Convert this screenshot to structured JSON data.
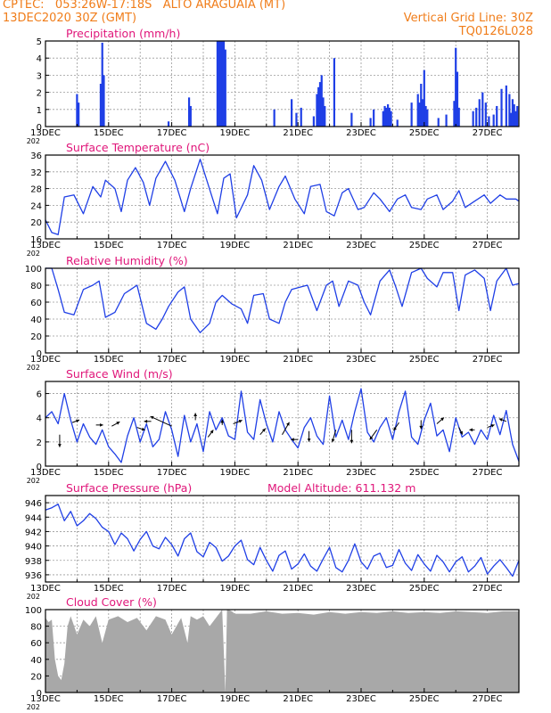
{
  "header": {
    "org_coords": "CPTEC:   053:26W-17:18S   ALTO ARAGUAIA (MT)",
    "run": "13DEC2020 30Z (GMT)",
    "grid_line": "Vertical Grid Line: 30Z",
    "model": "TQ0126L028"
  },
  "x_axis": {
    "labels": [
      "13DEC",
      "15DEC",
      "17DEC",
      "19DEC",
      "21DEC",
      "23DEC",
      "25DEC",
      "27DEC"
    ],
    "year_stub": "202"
  },
  "chart_data": [
    {
      "type": "bar",
      "title": "Precipitation (mm/h)",
      "ylim": [
        0,
        5
      ],
      "yticks": [
        0,
        1,
        2,
        3,
        4,
        5
      ],
      "color": "#1f3fe6",
      "events": [
        {
          "day": 14.0,
          "value": 1.9
        },
        {
          "day": 14.05,
          "value": 1.4
        },
        {
          "day": 14.75,
          "value": 2.5
        },
        {
          "day": 14.8,
          "value": 4.9
        },
        {
          "day": 14.85,
          "value": 3.0
        },
        {
          "day": 16.9,
          "value": 0.3
        },
        {
          "day": 17.55,
          "value": 1.7
        },
        {
          "day": 17.6,
          "value": 1.2
        },
        {
          "day": 18.45,
          "value": 5.0
        },
        {
          "day": 18.5,
          "value": 5.0
        },
        {
          "day": 18.55,
          "value": 5.0
        },
        {
          "day": 18.6,
          "value": 5.0
        },
        {
          "day": 18.65,
          "value": 5.0
        },
        {
          "day": 18.7,
          "value": 4.5
        },
        {
          "day": 20.25,
          "value": 1.0
        },
        {
          "day": 20.8,
          "value": 1.6
        },
        {
          "day": 20.95,
          "value": 0.8
        },
        {
          "day": 21.1,
          "value": 1.1
        },
        {
          "day": 21.5,
          "value": 0.6
        },
        {
          "day": 21.6,
          "value": 1.9
        },
        {
          "day": 21.65,
          "value": 2.3
        },
        {
          "day": 21.7,
          "value": 2.6
        },
        {
          "day": 21.75,
          "value": 3.0
        },
        {
          "day": 21.8,
          "value": 1.7
        },
        {
          "day": 21.85,
          "value": 1.2
        },
        {
          "day": 22.15,
          "value": 4.0
        },
        {
          "day": 22.7,
          "value": 0.8
        },
        {
          "day": 23.3,
          "value": 0.5
        },
        {
          "day": 23.4,
          "value": 1.0
        },
        {
          "day": 23.7,
          "value": 0.9
        },
        {
          "day": 23.75,
          "value": 1.2
        },
        {
          "day": 23.8,
          "value": 1.1
        },
        {
          "day": 23.85,
          "value": 1.3
        },
        {
          "day": 23.9,
          "value": 1.1
        },
        {
          "day": 23.95,
          "value": 0.9
        },
        {
          "day": 24.15,
          "value": 0.4
        },
        {
          "day": 24.6,
          "value": 1.4
        },
        {
          "day": 24.8,
          "value": 1.9
        },
        {
          "day": 24.85,
          "value": 1.4
        },
        {
          "day": 24.9,
          "value": 2.5
        },
        {
          "day": 24.95,
          "value": 1.6
        },
        {
          "day": 25.0,
          "value": 3.3
        },
        {
          "day": 25.05,
          "value": 1.2
        },
        {
          "day": 25.1,
          "value": 1.0
        },
        {
          "day": 25.45,
          "value": 0.5
        },
        {
          "day": 25.7,
          "value": 0.7
        },
        {
          "day": 25.95,
          "value": 1.5
        },
        {
          "day": 26.0,
          "value": 4.6
        },
        {
          "day": 26.05,
          "value": 3.2
        },
        {
          "day": 26.1,
          "value": 1.1
        },
        {
          "day": 26.55,
          "value": 0.9
        },
        {
          "day": 26.65,
          "value": 1.1
        },
        {
          "day": 26.75,
          "value": 1.6
        },
        {
          "day": 26.85,
          "value": 2.0
        },
        {
          "day": 26.95,
          "value": 1.4
        },
        {
          "day": 27.05,
          "value": 0.6
        },
        {
          "day": 27.2,
          "value": 0.7
        },
        {
          "day": 27.3,
          "value": 1.2
        },
        {
          "day": 27.45,
          "value": 2.2
        },
        {
          "day": 27.6,
          "value": 2.4
        },
        {
          "day": 27.7,
          "value": 1.9
        },
        {
          "day": 27.75,
          "value": 0.8
        },
        {
          "day": 27.8,
          "value": 1.6
        },
        {
          "day": 27.85,
          "value": 1.3
        },
        {
          "day": 27.9,
          "value": 0.9
        },
        {
          "day": 27.95,
          "value": 1.2
        }
      ]
    },
    {
      "type": "line",
      "title": "Surface Temperature (nC)",
      "ylim": [
        16,
        36
      ],
      "yticks": [
        16,
        20,
        24,
        28,
        32,
        36
      ],
      "color": "#1f3fe6",
      "x": [
        13.0,
        13.2,
        13.4,
        13.6,
        13.9,
        14.2,
        14.5,
        14.75,
        14.9,
        15.2,
        15.4,
        15.6,
        15.85,
        16.1,
        16.3,
        16.5,
        16.8,
        17.1,
        17.4,
        17.6,
        17.9,
        18.3,
        18.45,
        18.65,
        18.85,
        19.05,
        19.4,
        19.6,
        19.85,
        20.1,
        20.4,
        20.6,
        20.9,
        21.2,
        21.4,
        21.7,
        21.9,
        22.15,
        22.4,
        22.6,
        22.9,
        23.1,
        23.4,
        23.6,
        23.9,
        24.15,
        24.4,
        24.6,
        24.9,
        25.1,
        25.4,
        25.6,
        25.9,
        26.1,
        26.3,
        26.6,
        26.9,
        27.1,
        27.4,
        27.6,
        27.9,
        28.0
      ],
      "y": [
        20.5,
        17.5,
        17.0,
        26.0,
        26.5,
        22.0,
        28.5,
        26.0,
        30.0,
        28.0,
        22.5,
        30.0,
        33.0,
        29.5,
        24.0,
        30.5,
        34.5,
        30.0,
        22.5,
        28.0,
        35.0,
        25.5,
        22.0,
        30.5,
        31.5,
        21.0,
        26.5,
        33.5,
        30.0,
        23.0,
        28.5,
        31.0,
        25.5,
        22.0,
        28.5,
        29.0,
        22.5,
        21.5,
        27.0,
        28.0,
        23.0,
        23.5,
        27.0,
        25.5,
        22.5,
        25.5,
        26.5,
        23.5,
        23.0,
        25.5,
        26.5,
        23.0,
        25.0,
        27.5,
        23.5,
        25.0,
        26.5,
        24.5,
        26.5,
        25.5,
        25.5,
        25.0
      ]
    },
    {
      "type": "line",
      "title": "Relative Humidity (%)",
      "ylim": [
        0,
        100
      ],
      "yticks": [
        0,
        20,
        40,
        60,
        80,
        100
      ],
      "color": "#1f3fe6",
      "x": [
        13.0,
        13.2,
        13.4,
        13.6,
        13.9,
        14.2,
        14.5,
        14.7,
        14.9,
        15.2,
        15.5,
        15.7,
        15.9,
        16.2,
        16.5,
        16.7,
        16.9,
        17.2,
        17.4,
        17.6,
        17.9,
        18.2,
        18.4,
        18.6,
        18.9,
        19.2,
        19.4,
        19.6,
        19.9,
        20.1,
        20.4,
        20.6,
        20.8,
        21.1,
        21.3,
        21.6,
        21.9,
        22.1,
        22.3,
        22.6,
        22.9,
        23.1,
        23.3,
        23.6,
        23.9,
        24.1,
        24.3,
        24.6,
        24.9,
        25.1,
        25.4,
        25.6,
        25.9,
        26.1,
        26.3,
        26.6,
        26.9,
        27.1,
        27.3,
        27.6,
        27.8,
        28.0
      ],
      "y": [
        100,
        100,
        75,
        48,
        45,
        75,
        80,
        85,
        42,
        48,
        70,
        75,
        80,
        35,
        28,
        40,
        55,
        72,
        78,
        40,
        24,
        35,
        60,
        68,
        58,
        52,
        35,
        68,
        70,
        40,
        35,
        60,
        75,
        78,
        80,
        50,
        80,
        85,
        55,
        85,
        80,
        60,
        45,
        85,
        98,
        78,
        55,
        95,
        100,
        88,
        78,
        95,
        95,
        50,
        92,
        98,
        88,
        50,
        85,
        100,
        80,
        82
      ]
    },
    {
      "type": "line",
      "title": "Surface Wind (m/s)",
      "ylim": [
        0,
        7
      ],
      "yticks": [
        0,
        2,
        4,
        6
      ],
      "color": "#1f3fe6",
      "x": [
        13.0,
        13.2,
        13.4,
        13.6,
        13.8,
        14.0,
        14.2,
        14.4,
        14.6,
        14.8,
        15.0,
        15.2,
        15.4,
        15.6,
        15.8,
        16.0,
        16.2,
        16.4,
        16.6,
        16.8,
        17.0,
        17.2,
        17.4,
        17.6,
        17.8,
        18.0,
        18.2,
        18.4,
        18.6,
        18.8,
        19.0,
        19.2,
        19.4,
        19.6,
        19.8,
        20.0,
        20.2,
        20.4,
        20.6,
        20.8,
        21.0,
        21.2,
        21.4,
        21.6,
        21.8,
        22.0,
        22.2,
        22.4,
        22.6,
        22.8,
        23.0,
        23.2,
        23.4,
        23.6,
        23.8,
        24.0,
        24.2,
        24.4,
        24.6,
        24.8,
        25.0,
        25.2,
        25.4,
        25.6,
        25.8,
        26.0,
        26.2,
        26.4,
        26.6,
        26.8,
        27.0,
        27.2,
        27.4,
        27.6,
        27.8,
        28.0
      ],
      "y": [
        4.0,
        4.5,
        3.5,
        6.0,
        3.8,
        2.0,
        3.5,
        2.4,
        1.8,
        3.0,
        1.6,
        1.0,
        0.3,
        2.5,
        4.0,
        2.0,
        3.5,
        1.6,
        2.2,
        4.5,
        3.0,
        0.8,
        4.2,
        2.0,
        3.5,
        1.2,
        4.5,
        3.0,
        4.0,
        2.5,
        2.2,
        6.2,
        2.8,
        2.2,
        5.5,
        3.5,
        2.0,
        4.5,
        3.0,
        2.2,
        1.5,
        3.2,
        4.0,
        2.5,
        1.8,
        5.8,
        2.4,
        3.8,
        2.2,
        4.5,
        6.4,
        2.8,
        2.0,
        3.2,
        4.0,
        2.2,
        4.5,
        6.2,
        2.4,
        1.8,
        3.8,
        5.2,
        2.5,
        3.0,
        1.2,
        4.0,
        2.4,
        2.8,
        1.8,
        3.0,
        2.2,
        4.2,
        2.6,
        4.6,
        1.8,
        0.4
      ]
    },
    {
      "type": "line",
      "title": "Surface Pressure (hPa)",
      "annotation": "Model Altitude: 611.132 m",
      "ylim": [
        935,
        947
      ],
      "yticks": [
        936,
        938,
        940,
        942,
        944,
        946
      ],
      "color": "#1f3fe6",
      "x": [
        13.0,
        13.2,
        13.4,
        13.6,
        13.8,
        14.0,
        14.2,
        14.4,
        14.6,
        14.8,
        15.0,
        15.2,
        15.4,
        15.6,
        15.8,
        16.0,
        16.2,
        16.4,
        16.6,
        16.8,
        17.0,
        17.2,
        17.4,
        17.6,
        17.8,
        18.0,
        18.2,
        18.4,
        18.6,
        18.8,
        19.0,
        19.2,
        19.4,
        19.6,
        19.8,
        20.0,
        20.2,
        20.4,
        20.6,
        20.8,
        21.0,
        21.2,
        21.4,
        21.6,
        21.8,
        22.0,
        22.2,
        22.4,
        22.6,
        22.8,
        23.0,
        23.2,
        23.4,
        23.6,
        23.8,
        24.0,
        24.2,
        24.4,
        24.6,
        24.8,
        25.0,
        25.2,
        25.4,
        25.6,
        25.8,
        26.0,
        26.2,
        26.4,
        26.6,
        26.8,
        27.0,
        27.2,
        27.4,
        27.6,
        27.8,
        28.0
      ],
      "y": [
        945.0,
        945.3,
        945.8,
        943.5,
        944.8,
        942.8,
        943.5,
        944.5,
        943.8,
        942.6,
        942.0,
        940.2,
        941.8,
        941.0,
        939.3,
        940.9,
        942.0,
        940.0,
        939.6,
        941.2,
        940.2,
        938.6,
        941.0,
        941.8,
        939.2,
        938.5,
        940.5,
        939.8,
        937.9,
        938.6,
        940.0,
        940.8,
        938.1,
        937.4,
        939.8,
        938.0,
        936.5,
        938.7,
        939.3,
        936.8,
        937.5,
        938.9,
        937.2,
        936.5,
        938.2,
        939.8,
        937.0,
        936.4,
        938.0,
        940.3,
        937.8,
        936.8,
        938.6,
        939.0,
        937.0,
        937.3,
        939.5,
        937.6,
        936.6,
        938.8,
        937.5,
        936.5,
        938.7,
        937.8,
        936.4,
        937.8,
        938.5,
        936.4,
        937.2,
        938.4,
        936.1,
        937.2,
        938.1,
        937.0,
        935.8,
        938.0
      ]
    },
    {
      "type": "area",
      "title": "Cloud Cover (%)",
      "ylim": [
        0,
        100
      ],
      "yticks": [
        0,
        20,
        40,
        60,
        80,
        100
      ],
      "color": "#a8a8a8",
      "x": [
        13.0,
        13.1,
        13.2,
        13.3,
        13.4,
        13.5,
        13.6,
        13.7,
        13.8,
        14.0,
        14.2,
        14.4,
        14.6,
        14.8,
        15.0,
        15.3,
        15.6,
        15.9,
        16.2,
        16.5,
        16.8,
        17.0,
        17.3,
        17.5,
        17.6,
        17.8,
        18.0,
        18.2,
        18.4,
        18.5,
        18.6,
        18.7,
        18.75,
        18.8,
        18.9,
        19.0,
        19.5,
        20.0,
        20.5,
        21.0,
        21.5,
        22.0,
        22.5,
        23.0,
        23.5,
        24.0,
        24.5,
        25.0,
        25.5,
        26.0,
        26.5,
        27.0,
        27.5,
        28.0
      ],
      "y": [
        90,
        85,
        88,
        40,
        20,
        15,
        35,
        80,
        92,
        70,
        88,
        80,
        92,
        60,
        88,
        92,
        85,
        90,
        75,
        92,
        88,
        70,
        90,
        60,
        92,
        88,
        92,
        80,
        90,
        95,
        100,
        0,
        100,
        100,
        98,
        95,
        95,
        98,
        95,
        96,
        94,
        97,
        95,
        97,
        96,
        98,
        96,
        97,
        96,
        98,
        97,
        96,
        98,
        98
      ]
    }
  ]
}
